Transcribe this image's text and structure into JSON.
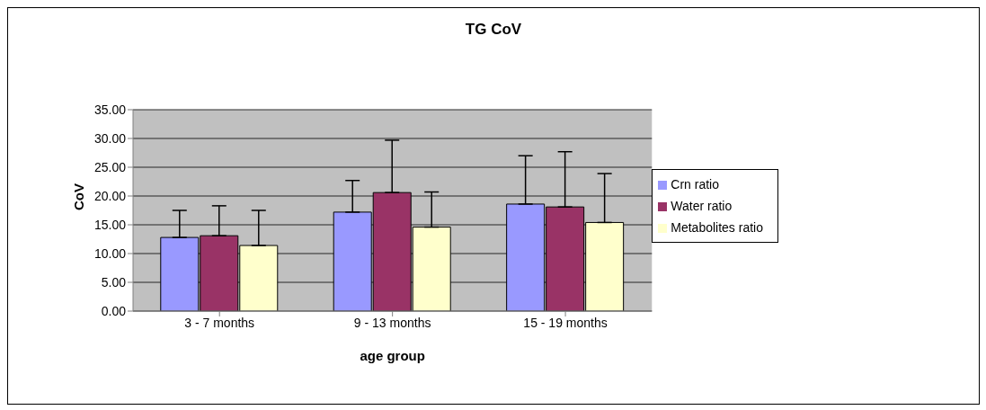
{
  "chart_data": {
    "type": "bar",
    "title": "TG CoV",
    "xlabel": "age group",
    "ylabel": "CoV",
    "categories": [
      "3 - 7 months",
      "9 - 13 months",
      "15 - 19 months"
    ],
    "series": [
      {
        "name": "Crn ratio",
        "color": "#9999ff",
        "values": [
          12.8,
          17.2,
          18.6
        ],
        "errors": [
          4.7,
          5.5,
          8.4
        ]
      },
      {
        "name": "Water ratio",
        "color": "#993366",
        "values": [
          13.1,
          20.6,
          18.1
        ],
        "errors": [
          5.2,
          9.1,
          9.6
        ]
      },
      {
        "name": "Metabolites ratio",
        "color": "#ffffcc",
        "values": [
          11.4,
          14.6,
          15.4
        ],
        "errors": [
          6.1,
          6.1,
          8.5
        ]
      }
    ],
    "ylim": [
      0,
      35
    ],
    "yticks": [
      {
        "value": 0,
        "label": "0.00"
      },
      {
        "value": 5,
        "label": "5.00"
      },
      {
        "value": 10,
        "label": "10.00"
      },
      {
        "value": 15,
        "label": "15.00"
      },
      {
        "value": 20,
        "label": "20.00"
      },
      {
        "value": 25,
        "label": "25.00"
      },
      {
        "value": 30,
        "label": "30.00"
      },
      {
        "value": 35,
        "label": "35.00"
      }
    ],
    "grid": "y",
    "legend": "right"
  }
}
